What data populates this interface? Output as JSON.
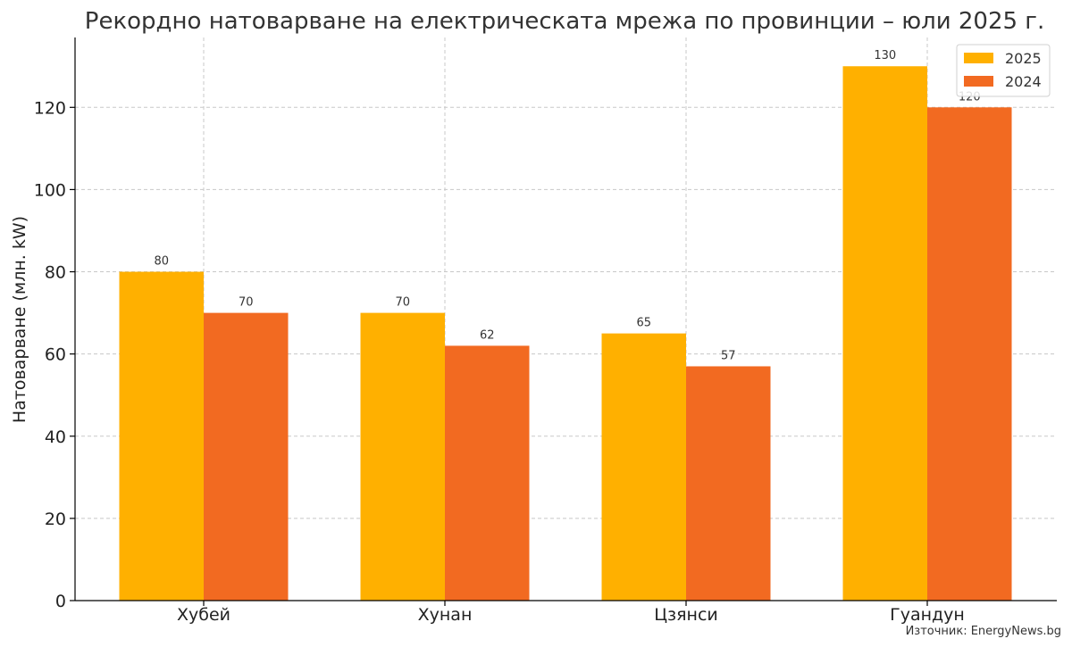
{
  "chart_data": {
    "type": "bar",
    "title": "Рекордно натоварване на електрическата мрежа по провинции – юли 2025 г.",
    "ylabel": "Натоварване (млн. kW)",
    "xlabel": "",
    "categories": [
      "Хубей",
      "Хунан",
      "Цзянси",
      "Гуандун"
    ],
    "series": [
      {
        "name": "2025",
        "values": [
          80,
          70,
          65,
          130
        ],
        "color": "#FFB000"
      },
      {
        "name": "2024",
        "values": [
          70,
          62,
          57,
          120
        ],
        "color": "#F26A21"
      }
    ],
    "ylim": [
      0,
      137
    ],
    "yticks": [
      0,
      20,
      40,
      60,
      80,
      100,
      120
    ],
    "grid": true,
    "legend_position": "top-right",
    "source": "Източник: EnergyNews.bg"
  }
}
